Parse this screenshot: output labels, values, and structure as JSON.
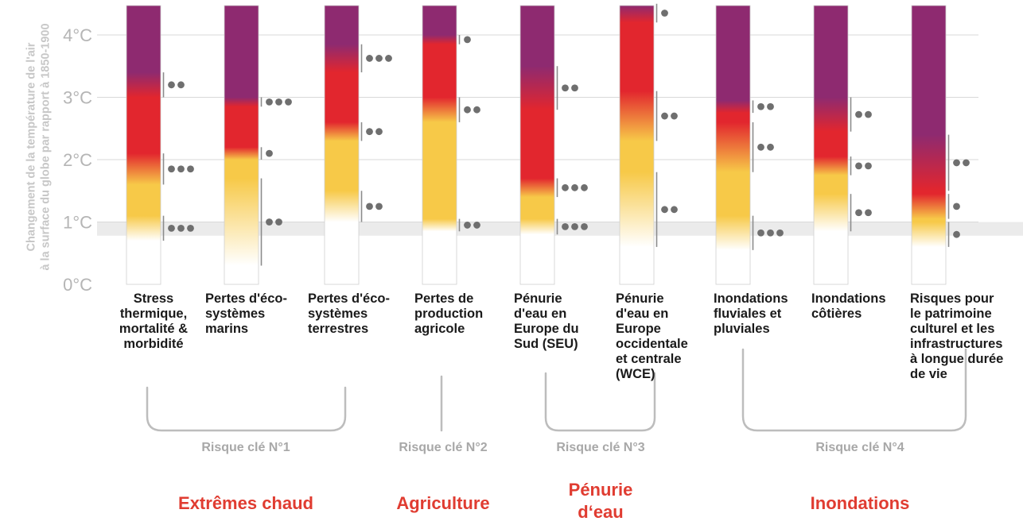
{
  "chart_data": {
    "type": "bar",
    "ylabel": [
      "Changement de la température de l'air",
      "à la surface du globe par rapport à 1850-1900"
    ],
    "y_ticks": [
      "0°C",
      "1°C",
      "2°C",
      "3°C",
      "4°C"
    ],
    "ylim": [
      0,
      4.5
    ],
    "observed_band": [
      0.78,
      1.0
    ],
    "colors": {
      "white": "#ffffff",
      "yellow": "#f7c948",
      "red": "#e2262e",
      "purple": "#8e2a70"
    },
    "bars": [
      {
        "label": "Stress thermique, mortalité & morbidité",
        "label_lines": [
          "Stress",
          "thermique,",
          "mortalité &",
          "morbidité"
        ],
        "transitions": [
          {
            "from": "white",
            "to": "yellow",
            "start": 0.7,
            "end": 1.1,
            "confidence": "●●●"
          },
          {
            "from": "yellow",
            "to": "red",
            "start": 1.6,
            "end": 2.1,
            "confidence": "●●●"
          },
          {
            "from": "red",
            "to": "purple",
            "start": 3.0,
            "end": 3.4,
            "confidence": "●●"
          }
        ]
      },
      {
        "label": "Pertes d'éco-systèmes marins",
        "label_lines": [
          "Pertes d'éco-",
          "systèmes",
          "marins"
        ],
        "transitions": [
          {
            "from": "white",
            "to": "yellow",
            "start": 0.3,
            "end": 1.7,
            "confidence": "●●"
          },
          {
            "from": "yellow",
            "to": "red",
            "start": 2.0,
            "end": 2.2,
            "confidence": "●"
          },
          {
            "from": "red",
            "to": "purple",
            "start": 2.85,
            "end": 3.0,
            "confidence": "●●●"
          }
        ]
      },
      {
        "label": "Pertes d'éco-systèmes terrestres",
        "label_lines": [
          "Pertes d'éco-",
          "systèmes",
          "terrestres"
        ],
        "transitions": [
          {
            "from": "white",
            "to": "yellow",
            "start": 1.0,
            "end": 1.5,
            "confidence": "●●"
          },
          {
            "from": "yellow",
            "to": "red",
            "start": 2.3,
            "end": 2.6,
            "confidence": "●●"
          },
          {
            "from": "red",
            "to": "purple",
            "start": 3.4,
            "end": 3.85,
            "confidence": "●●●"
          }
        ]
      },
      {
        "label": "Pertes de production agricole",
        "label_lines": [
          "Pertes de",
          "production",
          "agricole"
        ],
        "transitions": [
          {
            "from": "white",
            "to": "yellow",
            "start": 0.85,
            "end": 1.05,
            "confidence": "●●"
          },
          {
            "from": "yellow",
            "to": "red",
            "start": 2.6,
            "end": 3.0,
            "confidence": "●●"
          },
          {
            "from": "red",
            "to": "purple",
            "start": 3.85,
            "end": 4.0,
            "confidence": "●"
          }
        ]
      },
      {
        "label": "Pénurie d'eau en Europe du Sud (SEU)",
        "label_lines": [
          "Pénurie",
          "d'eau en",
          "Europe du",
          "Sud (SEU)"
        ],
        "transitions": [
          {
            "from": "white",
            "to": "yellow",
            "start": 0.8,
            "end": 1.05,
            "confidence": "●●●"
          },
          {
            "from": "yellow",
            "to": "red",
            "start": 1.4,
            "end": 1.7,
            "confidence": "●●●"
          },
          {
            "from": "red",
            "to": "purple",
            "start": 2.8,
            "end": 3.5,
            "confidence": "●●"
          }
        ]
      },
      {
        "label": "Pénurie d'eau en Europe occidentale et centrale (WCE)",
        "label_lines": [
          "Pénurie",
          "d'eau en",
          "Europe",
          "occidentale",
          "et centrale",
          "(WCE)"
        ],
        "transitions": [
          {
            "from": "white",
            "to": "yellow",
            "start": 0.6,
            "end": 1.8,
            "confidence": "●●"
          },
          {
            "from": "yellow",
            "to": "red",
            "start": 2.3,
            "end": 3.1,
            "confidence": "●●"
          },
          {
            "from": "red",
            "to": "purple",
            "start": 4.2,
            "end": 4.5,
            "confidence": "●"
          }
        ]
      },
      {
        "label": "Inondations fluviales et pluviales",
        "label_lines": [
          "Inondations",
          "fluviales et",
          "pluviales"
        ],
        "transitions": [
          {
            "from": "white",
            "to": "yellow",
            "start": 0.55,
            "end": 1.1,
            "confidence": "●●●"
          },
          {
            "from": "yellow",
            "to": "red",
            "start": 1.8,
            "end": 2.6,
            "confidence": "●●"
          },
          {
            "from": "red",
            "to": "purple",
            "start": 2.75,
            "end": 2.95,
            "confidence": "●●"
          }
        ]
      },
      {
        "label": "Inondations côtières",
        "label_lines": [
          "Inondations",
          "côtières"
        ],
        "transitions": [
          {
            "from": "white",
            "to": "yellow",
            "start": 0.85,
            "end": 1.45,
            "confidence": "●●"
          },
          {
            "from": "yellow",
            "to": "red",
            "start": 1.75,
            "end": 2.05,
            "confidence": "●●"
          },
          {
            "from": "red",
            "to": "purple",
            "start": 2.45,
            "end": 3.0,
            "confidence": "●●"
          }
        ]
      },
      {
        "label": "Risques pour le patrimoine culturel et les infrastructures à longue durée de vie",
        "label_lines": [
          "Risques pour",
          "le patrimoine",
          "culturel et les",
          "infrastructures",
          "à longue durée",
          "de vie"
        ],
        "transitions": [
          {
            "from": "white",
            "to": "yellow",
            "start": 0.6,
            "end": 1.0,
            "confidence": "●"
          },
          {
            "from": "yellow",
            "to": "red",
            "start": 1.05,
            "end": 1.45,
            "confidence": "●"
          },
          {
            "from": "red",
            "to": "purple",
            "start": 1.5,
            "end": 2.4,
            "confidence": "●●"
          }
        ]
      }
    ],
    "key_risks": [
      {
        "label": "Risque clé N°1",
        "category": "Extrêmes chaud",
        "bars": [
          0,
          1,
          2
        ]
      },
      {
        "label": "Risque clé N°2",
        "category": "Agriculture",
        "bars": [
          3
        ]
      },
      {
        "label": "Risque clé N°3",
        "category": "Pénurie d‘eau",
        "category_lines": [
          "Pénurie",
          "d‘eau"
        ],
        "bars": [
          4,
          5
        ]
      },
      {
        "label": "Risque clé N°4",
        "category": "Inondations",
        "bars": [
          6,
          7,
          8
        ]
      }
    ]
  }
}
